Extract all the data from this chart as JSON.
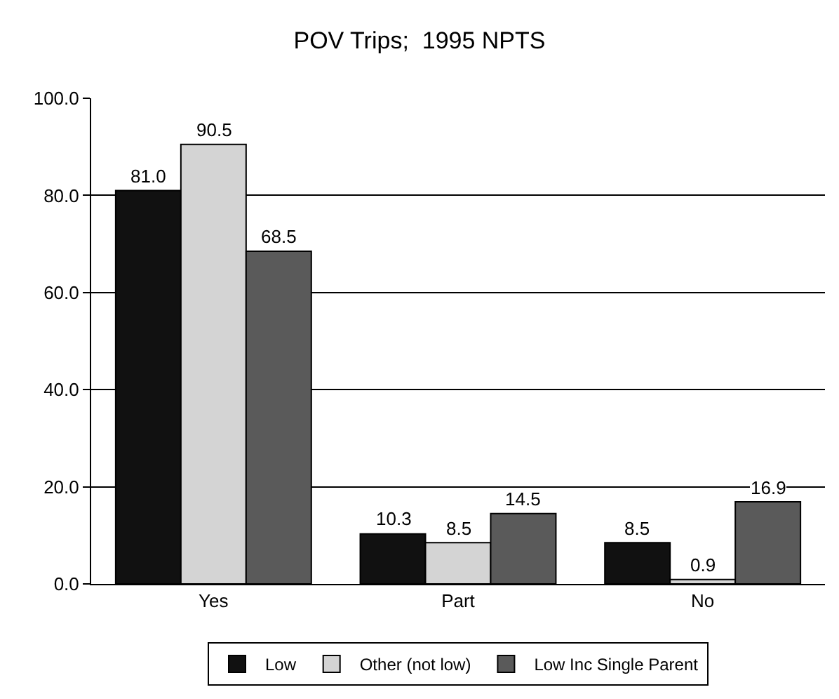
{
  "chart_data": {
    "type": "bar",
    "title": "POV Trips;  1995 NPTS",
    "categories": [
      "Yes",
      "Part",
      "No"
    ],
    "series": [
      {
        "name": "Low",
        "color": "#111111",
        "values": [
          81.0,
          10.3,
          8.5
        ],
        "value_labels": [
          "81.0",
          "10.3",
          "8.5"
        ]
      },
      {
        "name": "Other (not low)",
        "color": "#d4d4d4",
        "values": [
          90.5,
          8.5,
          0.9
        ],
        "value_labels": [
          "90.5",
          "8.5",
          "0.9"
        ]
      },
      {
        "name": "Low Inc Single Parent",
        "color": "#5a5a5a",
        "values": [
          68.5,
          14.5,
          16.9
        ],
        "value_labels": [
          "68.5",
          "14.5",
          "16.9"
        ]
      }
    ],
    "ylim": [
      0,
      100
    ],
    "yticks": [
      {
        "value": 0,
        "label": "0.0"
      },
      {
        "value": 20,
        "label": "20.0"
      },
      {
        "value": 40,
        "label": "40.0"
      },
      {
        "value": 60,
        "label": "60.0"
      },
      {
        "value": 80,
        "label": "80.0"
      },
      {
        "value": 100,
        "label": "100.0"
      }
    ],
    "grid": "y",
    "legend": "bottom"
  }
}
